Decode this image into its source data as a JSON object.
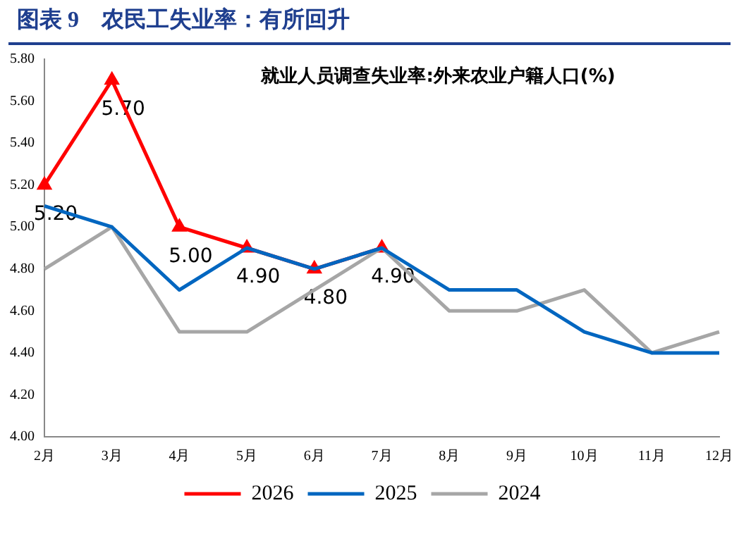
{
  "chart_data": {
    "type": "line",
    "title": "图表 9　农民工失业率：有所回升",
    "subtitle": "就业人员调查失业率:外来农业户籍人口(%)",
    "categories": [
      "2月",
      "3月",
      "4月",
      "5月",
      "6月",
      "7月",
      "8月",
      "9月",
      "10月",
      "11月",
      "12月"
    ],
    "series": [
      {
        "name": "2026",
        "color": "#ff0000",
        "marker": "triangle",
        "values": [
          5.2,
          5.7,
          5.0,
          4.9,
          4.8,
          4.9,
          null,
          null,
          null,
          null,
          null
        ],
        "value_labels": [
          "5.20",
          "5.70",
          "5.00",
          "4.90",
          "4.80",
          "4.90",
          null,
          null,
          null,
          null,
          null
        ]
      },
      {
        "name": "2025",
        "color": "#0066c0",
        "marker": "none",
        "values": [
          5.1,
          5.0,
          4.7,
          4.9,
          4.8,
          4.9,
          4.7,
          4.7,
          4.5,
          4.4,
          4.4
        ]
      },
      {
        "name": "2024",
        "color": "#a6a6a6",
        "marker": "none",
        "values": [
          4.8,
          5.0,
          4.5,
          4.5,
          4.7,
          4.9,
          4.6,
          4.6,
          4.7,
          4.4,
          4.5
        ]
      }
    ],
    "ylim": [
      4.0,
      5.8
    ],
    "yticks": [
      {
        "value": 4.0,
        "label": "4.00"
      },
      {
        "value": 4.2,
        "label": "4.20"
      },
      {
        "value": 4.4,
        "label": "4.40"
      },
      {
        "value": 4.6,
        "label": "4.60"
      },
      {
        "value": 4.8,
        "label": "4.80"
      },
      {
        "value": 5.0,
        "label": "5.00"
      },
      {
        "value": 5.2,
        "label": "5.20"
      },
      {
        "value": 5.4,
        "label": "5.40"
      },
      {
        "value": 5.6,
        "label": "5.60"
      },
      {
        "value": 5.8,
        "label": "5.80"
      }
    ],
    "grid": false,
    "legend": "bottom"
  }
}
